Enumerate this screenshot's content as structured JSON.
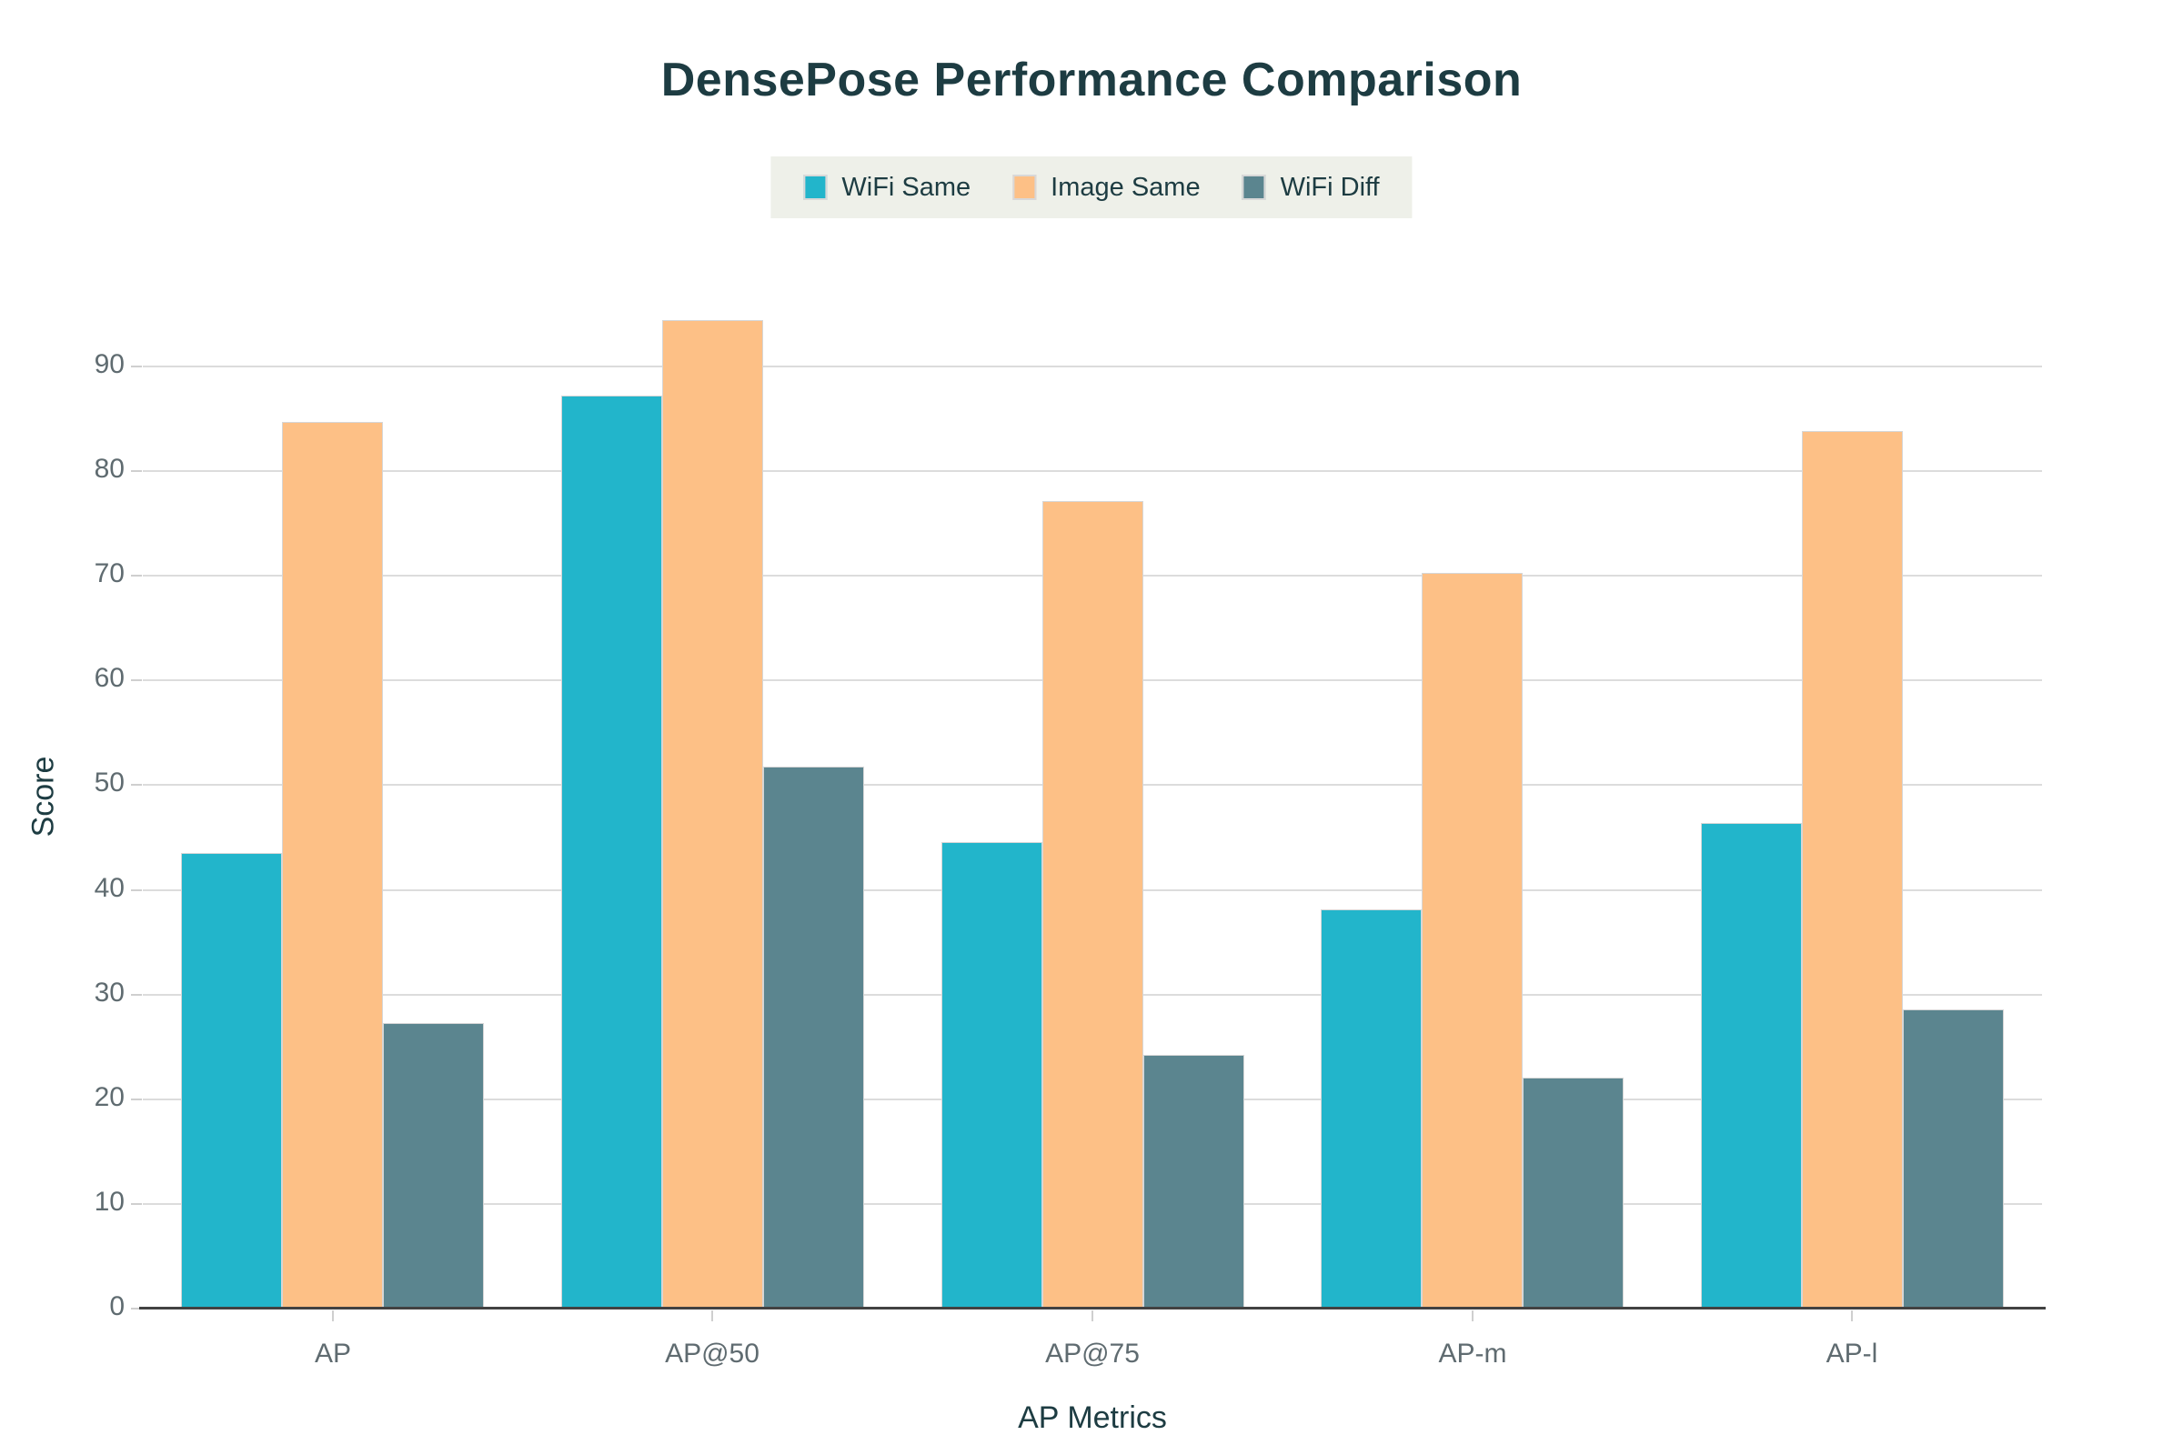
{
  "title": "DensePose Performance Comparison",
  "chart_data": {
    "type": "bar",
    "title": "DensePose Performance Comparison",
    "categories": [
      "AP",
      "AP@50",
      "AP@75",
      "AP-m",
      "AP-l"
    ],
    "series": [
      {
        "name": "WiFi Same",
        "color": "#22b5cb",
        "values": [
          43.5,
          87.2,
          44.6,
          38.1,
          46.4
        ]
      },
      {
        "name": "Image Same",
        "color": "#fdc086",
        "values": [
          84.7,
          94.4,
          77.1,
          70.3,
          83.8
        ]
      },
      {
        "name": "WiFi Diff",
        "color": "#5b858f",
        "values": [
          27.3,
          51.8,
          24.2,
          22.1,
          28.6
        ]
      }
    ],
    "xlabel": "AP Metrics",
    "ylabel": "Score",
    "ylim": [
      0,
      95
    ],
    "yticks": [
      0,
      10,
      20,
      30,
      40,
      50,
      60,
      70,
      80,
      90
    ],
    "grid": true,
    "legend_position": "top-center"
  },
  "colors": {
    "title_text": "#1d3c42",
    "axis_title_text": "#1d3c42",
    "tick_label": "#5f6b70",
    "gridline": "#dcdcdc",
    "tick_mark": "#cfcfcf",
    "axis_line": "#424242",
    "legend_bg": "#eef0e9",
    "background": "#ffffff"
  }
}
